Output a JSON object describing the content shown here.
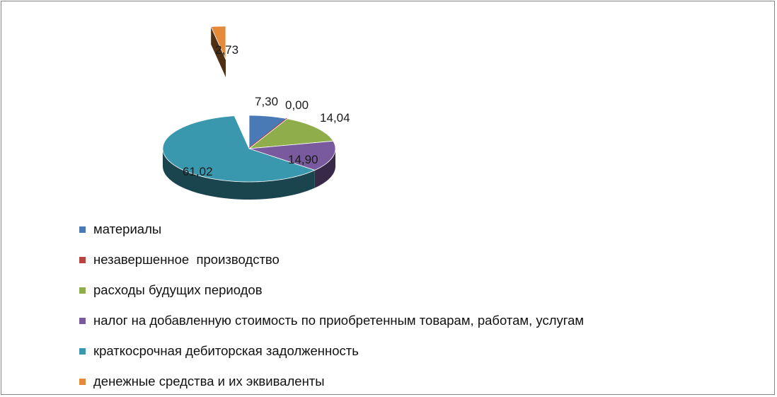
{
  "chart_data": {
    "type": "pie",
    "title": "",
    "style": "3d-exploded",
    "legend_position": "bottom-left",
    "slices": [
      {
        "name": "материалы",
        "value": 7.3,
        "label": "7,30",
        "color": "#4a7ab5"
      },
      {
        "name": "незавершенное  производство",
        "value": 0.0,
        "label": "0,00",
        "color": "#b8433f"
      },
      {
        "name": "расходы будущих периодов",
        "value": 14.04,
        "label": "14,04",
        "color": "#8fad4a"
      },
      {
        "name": "налог на добавленную стоимость по приобретенным товарам, работам, услугам",
        "value": 14.9,
        "label": "14,90",
        "color": "#7a5a9e"
      },
      {
        "name": "краткосрочная дебиторская задолженность",
        "value": 61.02,
        "label": "61,02",
        "color": "#3a98ae"
      },
      {
        "name": "денежные средства и их эквиваленты",
        "value": 2.73,
        "label": "2,73",
        "color": "#e48a3a"
      }
    ]
  }
}
